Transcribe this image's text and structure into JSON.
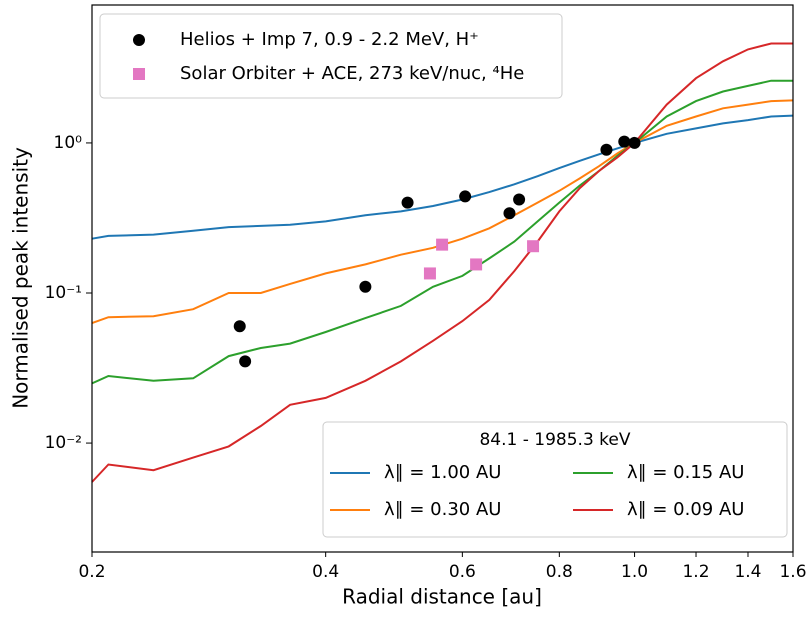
{
  "chart_data": {
    "type": "line",
    "xlabel": "Radial distance [au]",
    "ylabel": "Normalised peak intensity",
    "xscale": "log",
    "yscale": "log",
    "xlim": [
      0.2,
      1.6
    ],
    "ylim": [
      0.00188,
      8.3
    ],
    "xticks": [
      0.2,
      0.4,
      0.6,
      0.8,
      {
        "value": 1,
        "label": "1.0"
      },
      1.2,
      1.4,
      1.6
    ],
    "yticks": [
      {
        "value": 0.01,
        "label": "10⁻²"
      },
      {
        "value": 0.1,
        "label": "10⁻¹"
      },
      {
        "value": 1,
        "label": "10⁰"
      }
    ],
    "x": [
      0.2,
      0.21,
      0.24,
      0.27,
      0.3,
      0.33,
      0.36,
      0.4,
      0.45,
      0.5,
      0.55,
      0.6,
      0.65,
      0.7,
      0.75,
      0.8,
      0.85,
      0.9,
      0.95,
      1.0,
      1.1,
      1.2,
      1.3,
      1.4,
      1.5,
      1.6
    ],
    "legend_title": "84.1 - 1985.3 keV",
    "series": [
      {
        "name": "λ∥ = 1.00 AU",
        "color": "#1f77b4",
        "values": [
          0.23,
          0.24,
          0.245,
          0.26,
          0.275,
          0.28,
          0.285,
          0.3,
          0.33,
          0.35,
          0.38,
          0.42,
          0.47,
          0.53,
          0.6,
          0.68,
          0.76,
          0.84,
          0.92,
          1.0,
          1.15,
          1.25,
          1.35,
          1.42,
          1.5,
          1.52
        ]
      },
      {
        "name": "λ∥ = 0.30 AU",
        "color": "#ff7f0e",
        "values": [
          0.063,
          0.069,
          0.07,
          0.078,
          0.1,
          0.1,
          0.115,
          0.135,
          0.155,
          0.18,
          0.2,
          0.23,
          0.27,
          0.33,
          0.4,
          0.48,
          0.58,
          0.7,
          0.85,
          1.0,
          1.3,
          1.5,
          1.7,
          1.8,
          1.9,
          1.92
        ]
      },
      {
        "name": "λ∥ = 0.15 AU",
        "color": "#2ca02c",
        "values": [
          0.025,
          0.028,
          0.026,
          0.027,
          0.038,
          0.043,
          0.046,
          0.055,
          0.068,
          0.082,
          0.11,
          0.13,
          0.17,
          0.22,
          0.3,
          0.4,
          0.52,
          0.65,
          0.82,
          1.0,
          1.5,
          1.9,
          2.2,
          2.4,
          2.6,
          2.6
        ]
      },
      {
        "name": "λ∥ = 0.09 AU",
        "color": "#d62728",
        "values": [
          0.0055,
          0.0072,
          0.0066,
          0.008,
          0.0095,
          0.013,
          0.018,
          0.02,
          0.026,
          0.035,
          0.048,
          0.065,
          0.09,
          0.14,
          0.22,
          0.35,
          0.5,
          0.65,
          0.8,
          1.0,
          1.8,
          2.7,
          3.5,
          4.2,
          4.6,
          4.6
        ]
      }
    ],
    "points": [
      {
        "name": "Helios + Imp 7, 0.9 - 2.2 MeV, H⁺",
        "color": "#000000",
        "marker": "circle",
        "x": [
          0.31,
          0.315,
          0.45,
          0.51,
          0.605,
          0.69,
          0.71,
          0.92,
          0.97,
          1.0
        ],
        "values": [
          0.06,
          0.035,
          0.11,
          0.4,
          0.44,
          0.34,
          0.42,
          0.9,
          1.02,
          1.0
        ]
      },
      {
        "name": "Solar Orbiter + ACE, 273 keV/nuc, ⁴He",
        "color": "#e377c2",
        "marker": "square",
        "x": [
          0.545,
          0.565,
          0.625,
          0.74
        ],
        "values": [
          0.135,
          0.21,
          0.155,
          0.205
        ]
      }
    ]
  }
}
